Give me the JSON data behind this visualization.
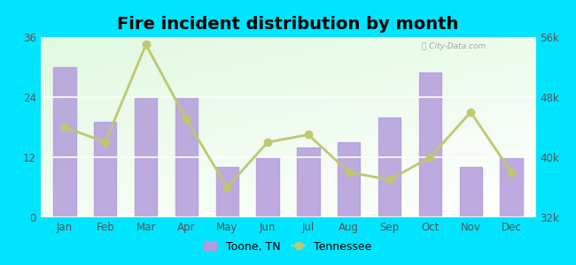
{
  "title": "Fire incident distribution by month",
  "months": [
    "Jan",
    "Feb",
    "Mar",
    "Apr",
    "May",
    "Jun",
    "Jul",
    "Aug",
    "Sep",
    "Oct",
    "Nov",
    "Dec"
  ],
  "toone_values": [
    30,
    19,
    24,
    24,
    10,
    12,
    14,
    15,
    20,
    29,
    10,
    12
  ],
  "tennessee_values": [
    44000,
    42000,
    55000,
    45000,
    36000,
    42000,
    43000,
    38000,
    37000,
    40000,
    46000,
    38000
  ],
  "bar_color": "#b39ddb",
  "line_color": "#bdc870",
  "marker_color": "#bdc870",
  "outer_background": "#00e5ff",
  "left_ylim": [
    0,
    36
  ],
  "left_yticks": [
    0,
    12,
    24,
    36
  ],
  "right_ylim": [
    32000,
    56000
  ],
  "right_yticks": [
    32000,
    40000,
    48000,
    56000
  ],
  "right_yticklabels": [
    "32k",
    "40k",
    "48k",
    "56k"
  ],
  "title_fontsize": 14,
  "legend_label_toone": "Toone, TN",
  "legend_label_tn": "Tennessee",
  "watermark": "ⓘ City-Data.com"
}
